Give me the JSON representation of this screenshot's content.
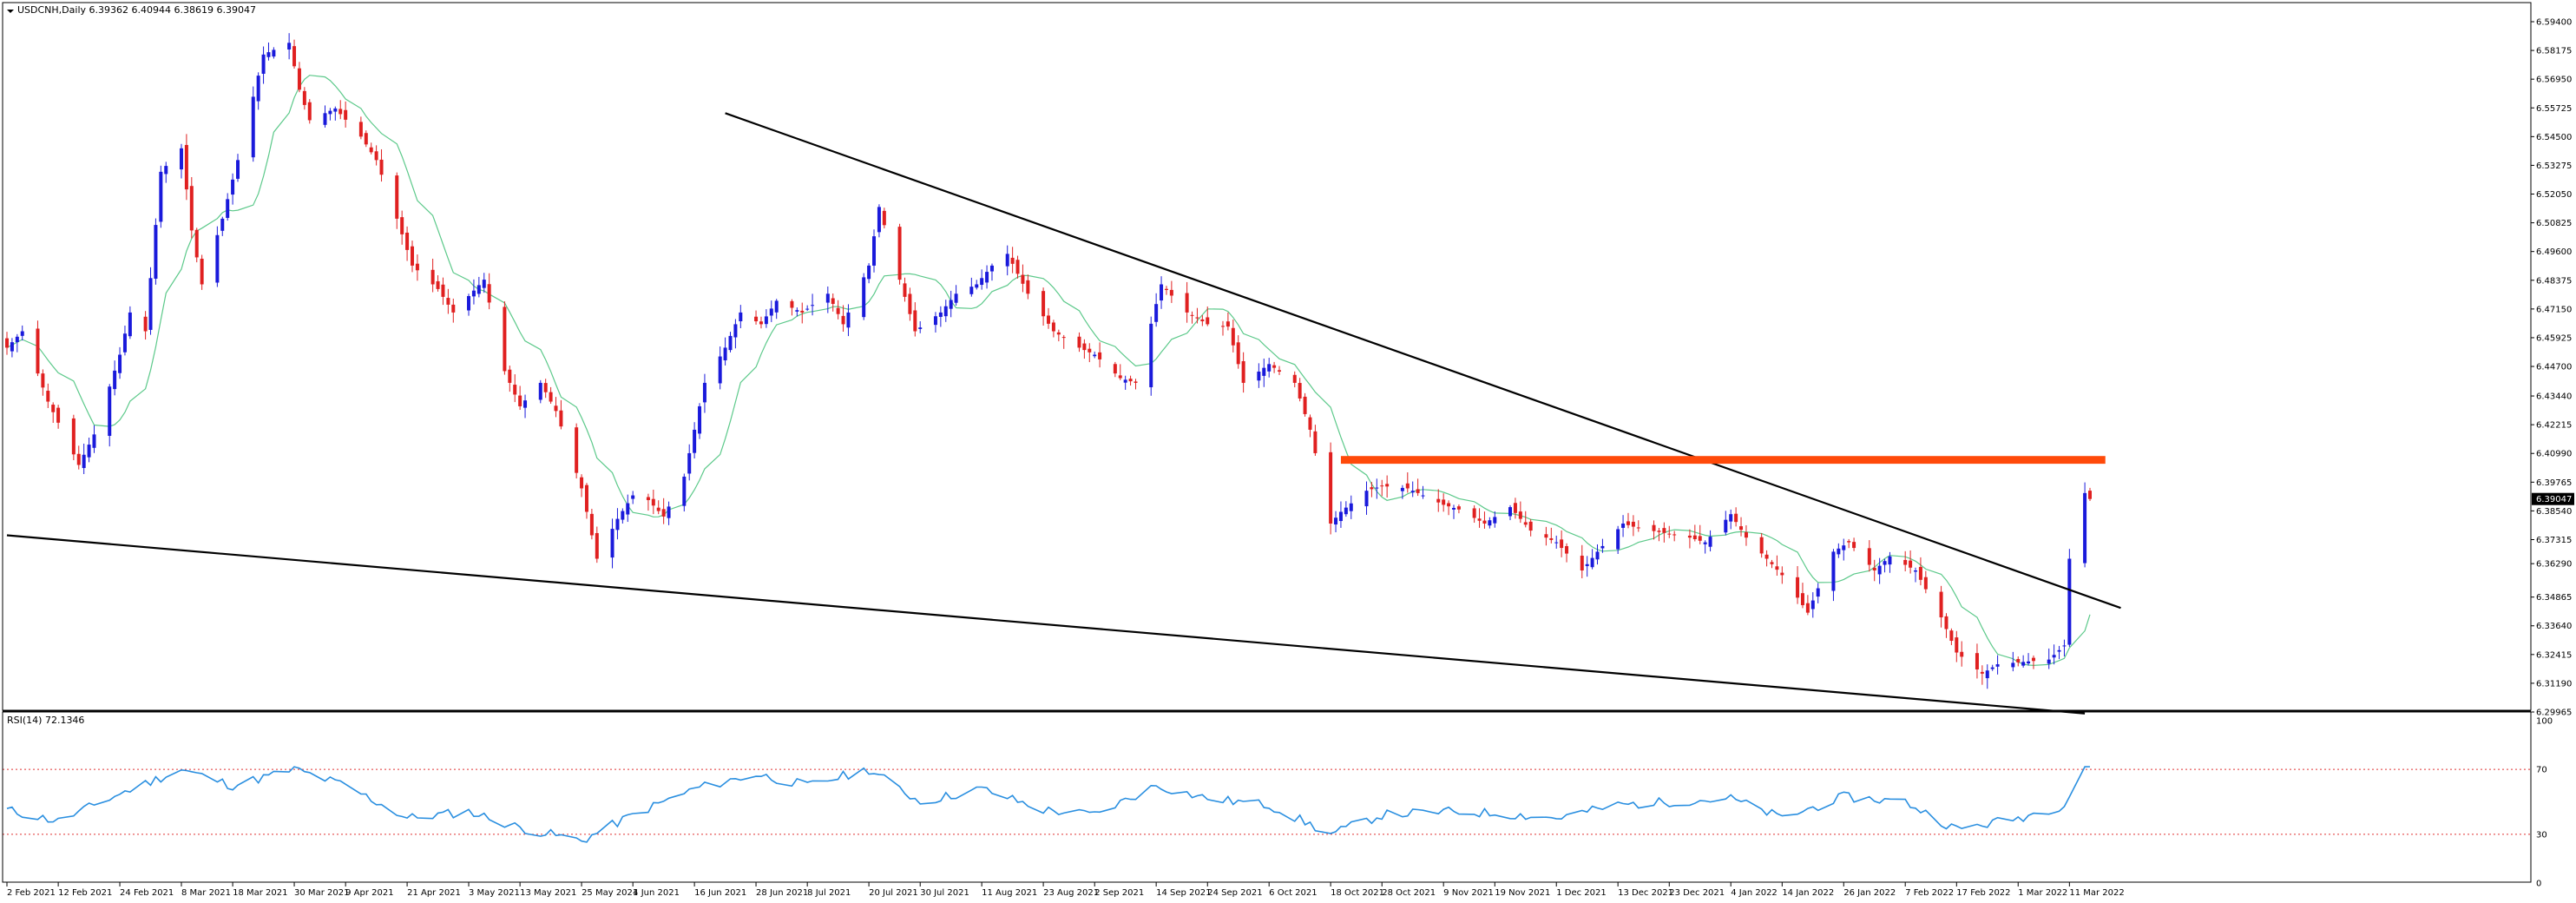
{
  "header": {
    "symbol_line": "USDCNH,Daily  6.39362 6.40944 6.38619 6.39047"
  },
  "indicator": {
    "label": "RSI(14) 72.1346",
    "ticks": [
      "100",
      "70",
      "30",
      "0"
    ],
    "levels": [
      70,
      30
    ]
  },
  "price_axis": {
    "ticks": [
      "6.59400",
      "6.58175",
      "6.56950",
      "6.55725",
      "6.54500",
      "6.53275",
      "6.52050",
      "6.50825",
      "6.49600",
      "6.48375",
      "6.47150",
      "6.45925",
      "6.44700",
      "6.43440",
      "6.42215",
      "6.40990",
      "6.39765",
      "6.38540",
      "6.37315",
      "6.36290",
      "6.34865",
      "6.33640",
      "6.32415",
      "6.31190",
      "6.29965"
    ],
    "current_price": "6.39047"
  },
  "time_axis": {
    "ticks": [
      "2 Feb 2021",
      "12 Feb 2021",
      "24 Feb 2021",
      "8 Mar 2021",
      "18 Mar 2021",
      "30 Mar 2021",
      "9 Apr 2021",
      "21 Apr 2021",
      "3 May 2021",
      "13 May 2021",
      "25 May 2021",
      "4 Jun 2021",
      "16 Jun 2021",
      "28 Jun 2021",
      "8 Jul 2021",
      "20 Jul 2021",
      "30 Jul 2021",
      "11 Aug 2021",
      "23 Aug 2021",
      "2 Sep 2021",
      "14 Sep 2021",
      "24 Sep 2021",
      "6 Oct 2021",
      "18 Oct 2021",
      "28 Oct 2021",
      "9 Nov 2021",
      "19 Nov 2021",
      "1 Dec 2021",
      "13 Dec 2021",
      "23 Dec 2021",
      "4 Jan 2022",
      "14 Jan 2022",
      "26 Jan 2022",
      "7 Feb 2022",
      "17 Feb 2022",
      "1 Mar 2022",
      "11 Mar 2022"
    ]
  },
  "colors": {
    "bull": "#1a1adb",
    "bear": "#e02020",
    "ma": "#5cc98a",
    "rsi": "#2a8fe0",
    "resistance": "#ff4a0a",
    "trendline": "#000000",
    "level_line": "#e03030"
  },
  "chart_data": {
    "type": "candlestick",
    "symbol": "USDCNH",
    "timeframe": "Daily",
    "ylim": [
      6.29965,
      6.594
    ],
    "rsi_ylim": [
      0,
      100
    ],
    "anchors": [
      [
        "2 Feb 2021",
        6.455
      ],
      [
        "5 Feb 2021",
        6.462
      ],
      [
        "10 Feb 2021",
        6.432
      ],
      [
        "16 Feb 2021",
        6.405
      ],
      [
        "19 Feb 2021",
        6.418
      ],
      [
        "24 Feb 2021",
        6.452
      ],
      [
        "26 Feb 2021",
        6.47
      ],
      [
        "1 Mar 2021",
        6.462
      ],
      [
        "4 Mar 2021",
        6.53
      ],
      [
        "8 Mar 2021",
        6.54
      ],
      [
        "10 Mar 2021",
        6.505
      ],
      [
        "12 Mar 2021",
        6.482
      ],
      [
        "16 Mar 2021",
        6.51
      ],
      [
        "19 Mar 2021",
        6.535
      ],
      [
        "24 Mar 2021",
        6.58
      ],
      [
        "29 Mar 2021",
        6.585
      ],
      [
        "31 Mar 2021",
        6.565
      ],
      [
        "2 Apr 2021",
        6.552
      ],
      [
        "7 Apr 2021",
        6.557
      ],
      [
        "12 Apr 2021",
        6.545
      ],
      [
        "15 Apr 2021",
        6.535
      ],
      [
        "19 Apr 2021",
        6.51
      ],
      [
        "22 Apr 2021",
        6.49
      ],
      [
        "27 Apr 2021",
        6.48
      ],
      [
        "30 Apr 2021",
        6.47
      ],
      [
        "6 May 2021",
        6.484
      ],
      [
        "10 May 2021",
        6.445
      ],
      [
        "13 May 2021",
        6.43
      ],
      [
        "17 May 2021",
        6.44
      ],
      [
        "20 May 2021",
        6.428
      ],
      [
        "25 May 2021",
        6.395
      ],
      [
        "28 May 2021",
        6.365
      ],
      [
        "1 Jun 2021",
        6.382
      ],
      [
        "4 Jun 2021",
        6.392
      ],
      [
        "7 Jun 2021",
        6.39
      ],
      [
        "10 Jun 2021",
        6.383
      ],
      [
        "14 Jun 2021",
        6.4
      ],
      [
        "18 Jun 2021",
        6.44
      ],
      [
        "22 Jun 2021",
        6.455
      ],
      [
        "25 Jun 2021",
        6.47
      ],
      [
        "29 Jun 2021",
        6.465
      ],
      [
        "2 Jul 2021",
        6.475
      ],
      [
        "7 Jul 2021",
        6.47
      ],
      [
        "12 Jul 2021",
        6.478
      ],
      [
        "15 Jul 2021",
        6.465
      ],
      [
        "20 Jul 2021",
        6.49
      ],
      [
        "22 Jul 2021",
        6.515
      ],
      [
        "26 Jul 2021",
        6.484
      ],
      [
        "29 Jul 2021",
        6.462
      ],
      [
        "3 Aug 2021",
        6.47
      ],
      [
        "6 Aug 2021",
        6.478
      ],
      [
        "10 Aug 2021",
        6.482
      ],
      [
        "13 Aug 2021",
        6.49
      ],
      [
        "16 Aug 2021",
        6.495
      ],
      [
        "20 Aug 2021",
        6.478
      ],
      [
        "25 Aug 2021",
        6.462
      ],
      [
        "30 Aug 2021",
        6.455
      ],
      [
        "2 Sep 2021",
        6.452
      ],
      [
        "7 Sep 2021",
        6.442
      ],
      [
        "10 Sep 2021",
        6.44
      ],
      [
        "15 Sep 2021",
        6.482
      ],
      [
        "20 Sep 2021",
        6.47
      ],
      [
        "24 Sep 2021",
        6.465
      ],
      [
        "28 Sep 2021",
        6.464
      ],
      [
        "1 Oct 2021",
        6.44
      ],
      [
        "6 Oct 2021",
        6.448
      ],
      [
        "11 Oct 2021",
        6.44
      ],
      [
        "14 Oct 2021",
        6.42
      ],
      [
        "18 Oct 2021",
        6.38
      ],
      [
        "20 Oct 2021",
        6.385
      ],
      [
        "25 Oct 2021",
        6.394
      ],
      [
        "28 Oct 2021",
        6.396
      ],
      [
        "2 Nov 2021",
        6.395
      ],
      [
        "5 Nov 2021",
        6.392
      ],
      [
        "9 Nov 2021",
        6.388
      ],
      [
        "12 Nov 2021",
        6.386
      ],
      [
        "17 Nov 2021",
        6.38
      ],
      [
        "22 Nov 2021",
        6.387
      ],
      [
        "26 Nov 2021",
        6.377
      ],
      [
        "1 Dec 2021",
        6.372
      ],
      [
        "6 Dec 2021",
        6.36
      ],
      [
        "9 Dec 2021",
        6.368
      ],
      [
        "14 Dec 2021",
        6.38
      ],
      [
        "17 Dec 2021",
        6.378
      ],
      [
        "22 Dec 2021",
        6.376
      ],
      [
        "27 Dec 2021",
        6.374
      ],
      [
        "30 Dec 2021",
        6.372
      ],
      [
        "4 Jan 2022",
        6.384
      ],
      [
        "7 Jan 2022",
        6.374
      ],
      [
        "11 Jan 2022",
        6.365
      ],
      [
        "14 Jan 2022",
        6.358
      ],
      [
        "19 Jan 2022",
        6.342
      ],
      [
        "24 Jan 2022",
        6.368
      ],
      [
        "27 Jan 2022",
        6.372
      ],
      [
        "1 Feb 2022",
        6.36
      ],
      [
        "4 Feb 2022",
        6.366
      ],
      [
        "9 Feb 2022",
        6.36
      ],
      [
        "14 Feb 2022",
        6.34
      ],
      [
        "17 Feb 2022",
        6.325
      ],
      [
        "22 Feb 2022",
        6.316
      ],
      [
        "25 Feb 2022",
        6.32
      ],
      [
        "2 Mar 2022",
        6.321
      ],
      [
        "7 Mar 2022",
        6.322
      ],
      [
        "10 Mar 2022",
        6.328
      ],
      [
        "11 Mar 2022",
        6.365
      ],
      [
        "14 Mar 2022",
        6.393
      ],
      [
        "15 Mar 2022",
        6.39047
      ]
    ],
    "rsi_anchors": [
      [
        "2 Feb 2021",
        45
      ],
      [
        "12 Feb 2021",
        38
      ],
      [
        "24 Feb 2021",
        55
      ],
      [
        "8 Mar 2021",
        70
      ],
      [
        "18 Mar 2021",
        60
      ],
      [
        "30 Mar 2021",
        70
      ],
      [
        "9 Apr 2021",
        60
      ],
      [
        "21 Apr 2021",
        40
      ],
      [
        "3 May 2021",
        44
      ],
      [
        "13 May 2021",
        34
      ],
      [
        "25 May 2021",
        26
      ],
      [
        "4 Jun 2021",
        42
      ],
      [
        "16 Jun 2021",
        58
      ],
      [
        "28 Jun 2021",
        67
      ],
      [
        "8 Jul 2021",
        60
      ],
      [
        "20 Jul 2021",
        70
      ],
      [
        "30 Jul 2021",
        50
      ],
      [
        "11 Aug 2021",
        58
      ],
      [
        "23 Aug 2021",
        45
      ],
      [
        "2 Sep 2021",
        42
      ],
      [
        "14 Sep 2021",
        60
      ],
      [
        "24 Sep 2021",
        52
      ],
      [
        "6 Oct 2021",
        48
      ],
      [
        "18 Oct 2021",
        30
      ],
      [
        "28 Oct 2021",
        42
      ],
      [
        "9 Nov 2021",
        44
      ],
      [
        "19 Nov 2021",
        43
      ],
      [
        "1 Dec 2021",
        40
      ],
      [
        "13 Dec 2021",
        48
      ],
      [
        "23 Dec 2021",
        50
      ],
      [
        "4 Jan 2022",
        52
      ],
      [
        "14 Jan 2022",
        40
      ],
      [
        "26 Jan 2022",
        53
      ],
      [
        "7 Feb 2022",
        50
      ],
      [
        "17 Feb 2022",
        33
      ],
      [
        "1 Mar 2022",
        40
      ],
      [
        "10 Mar 2022",
        48
      ],
      [
        "14 Mar 2022",
        72
      ],
      [
        "15 Mar 2022",
        72.1346
      ]
    ],
    "annotations": [
      {
        "type": "trendline",
        "name": "descending-resistance",
        "from": [
          "22 Jun 2021",
          6.555
        ],
        "to": [
          "21 Mar 2022",
          6.344
        ]
      },
      {
        "type": "trendline",
        "name": "lower-support",
        "from": [
          "2 Feb 2021",
          6.375
        ],
        "to": [
          "14 Mar 2022",
          6.299
        ]
      },
      {
        "type": "horizontal-zone",
        "name": "resistance-zone",
        "from": "20 Oct 2021",
        "to": "18 Mar 2022",
        "price": [
          6.4088,
          6.4055
        ]
      }
    ]
  }
}
